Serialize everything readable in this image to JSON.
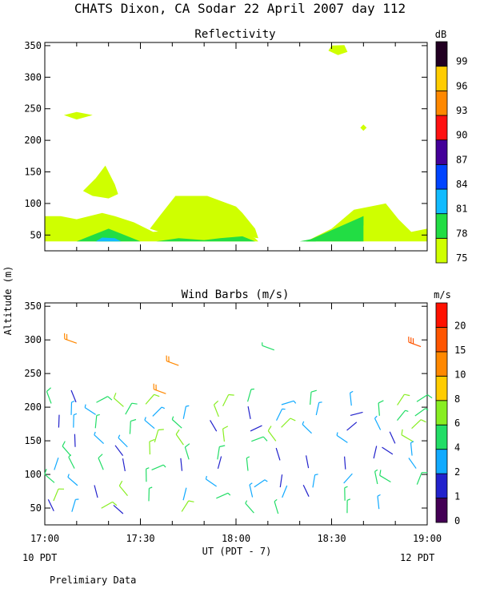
{
  "header": {
    "title": "CHATS Dixon, CA  Sodar  22 April 2007  day 112"
  },
  "footer": {
    "start_local": "10 PDT",
    "end_local": "12 PDT",
    "note": "Prelimiary Data"
  },
  "chart_data": [
    {
      "type": "heatmap",
      "title": "Reflectivity",
      "ylabel": "Altitude (m)",
      "ylim": [
        25,
        355
      ],
      "yticks": [
        50,
        100,
        150,
        200,
        250,
        300,
        350
      ],
      "xlim_minutes_utc": [
        0,
        120
      ],
      "xticks": [
        "17:00",
        "17:30",
        "18:00",
        "18:30",
        "19:00"
      ],
      "colorbar": {
        "unit": "dB",
        "levels": [
          75,
          78,
          81,
          84,
          87,
          90,
          93,
          96,
          99
        ],
        "colors": [
          "#cfff00",
          "#22dd44",
          "#11bbff",
          "#0044ff",
          "#440099",
          "#ff1111",
          "#ff8800",
          "#ffcc00",
          "#220022"
        ]
      },
      "regions": [
        {
          "level": 75,
          "t_min": [
            0,
            7,
            20,
            60,
            120
          ],
          "alt_m": [
            40,
            80,
            85,
            110,
            60
          ]
        },
        {
          "level": 78,
          "t_min": [
            10,
            20,
            30,
            60,
            100
          ],
          "alt_m": [
            40,
            60,
            45,
            45,
            80
          ]
        },
        {
          "level": 81,
          "t_min": [
            18
          ],
          "alt_m": [
            45
          ]
        }
      ]
    },
    {
      "type": "scatter",
      "title": "Wind Barbs (m/s)",
      "ylabel": "Altitude (m)",
      "ylim": [
        25,
        355
      ],
      "yticks": [
        50,
        100,
        150,
        200,
        250,
        300,
        350
      ],
      "xticks": [
        "17:00",
        "17:30",
        "18:00",
        "18:30",
        "19:00"
      ],
      "xlabel": "UT  (PDT - 7)",
      "colorbar": {
        "unit": "m/s",
        "labels": [
          0,
          1,
          2,
          4,
          6,
          8,
          10,
          15,
          20
        ],
        "colors": [
          "#440055",
          "#2222cc",
          "#11aaff",
          "#22dd66",
          "#88ee22",
          "#ffcc00",
          "#ff8800",
          "#ff5500",
          "#ff1100"
        ]
      },
      "barbs_sample": [
        {
          "t_min": 10,
          "alt_m": 295,
          "speed": 10
        },
        {
          "t_min": 42,
          "alt_m": 262,
          "speed": 10
        },
        {
          "t_min": 38,
          "alt_m": 220,
          "speed": 10
        },
        {
          "t_min": 72,
          "alt_m": 285,
          "speed": 4
        },
        {
          "t_min": 118,
          "alt_m": 290,
          "speed": 15
        }
      ]
    }
  ]
}
